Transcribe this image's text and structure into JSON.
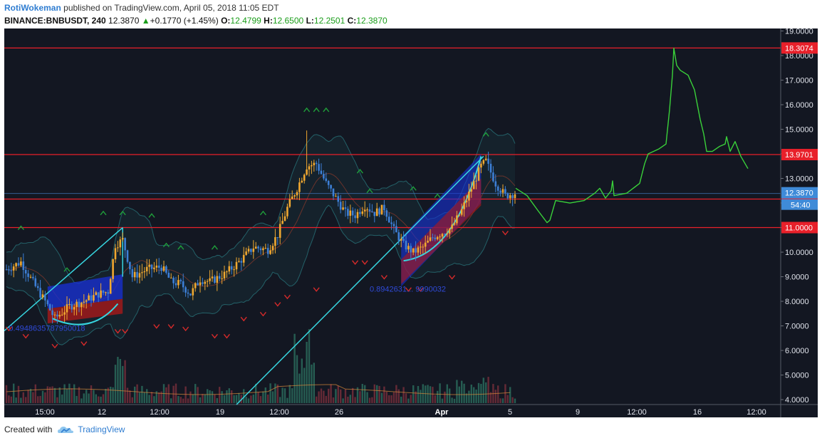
{
  "header": {
    "author": "RotiWokeman",
    "published_text": "published on TradingView.com, April 05, 2018 11:05 EDT",
    "symbol": "BINANCE:BNBUSDT, 240",
    "last": "12.3870",
    "change": "+0.1770 (+1.45%)",
    "o_label": "O:",
    "o_value": "12.4799",
    "h_label": "H:",
    "h_value": "12.6500",
    "l_label": "L:",
    "l_value": "12.2501",
    "c_label": "C:",
    "c_value": "12.3870"
  },
  "footer": {
    "created_with": "Created with",
    "brand": "TradingView"
  },
  "colors": {
    "background": "#131722",
    "up": "#f0a830",
    "down": "#3d7fd6",
    "level": "#e8202a",
    "drawing_green": "#3ad13a",
    "trendline": "#37d6e0",
    "signal_up": "#1f9e3a",
    "signal_down": "#d52a2a"
  },
  "chart_data": {
    "type": "candlestick",
    "symbol": "BINANCE:BNBUSDT",
    "interval": "240",
    "y_axis": {
      "range": [
        3.8,
        19.1
      ],
      "ticks": [
        "19.0000",
        "18.0000",
        "17.0000",
        "16.0000",
        "15.0000",
        "14.0000",
        "13.0000",
        "12.0000",
        "11.0000",
        "10.0000",
        "9.0000",
        "8.0000",
        "7.0000",
        "6.0000",
        "5.0000",
        "4.0000"
      ]
    },
    "x_axis": {
      "ticks": [
        "15:00",
        "12",
        "12:00",
        "19",
        "12:00",
        "26",
        "Apr",
        "5",
        "9",
        "12:00",
        "16",
        "12:00"
      ]
    },
    "price_levels": [
      {
        "value": 18.3074,
        "label": "18.3074",
        "color": "#e8202a"
      },
      {
        "value": 13.9701,
        "label": "13.9701",
        "color": "#e8202a"
      },
      {
        "value": 12.1601,
        "label": "12.1601",
        "color": "#e8202a"
      },
      {
        "value": 11.0,
        "label": "11.0000",
        "color": "#e8202a"
      }
    ],
    "last_price": {
      "value": 12.387,
      "label": "12.3870",
      "color": "#3f8bd8"
    },
    "countdown_label": "54:40",
    "annotations": [
      "0.4948635787950018",
      "0.8942631... 9990032"
    ],
    "key_prices": {
      "start": 9.3,
      "high_peak": 14.95,
      "pre_breakout_low": 7.1,
      "second_peak": 13.95,
      "forecast_peak": 18.3
    }
  }
}
